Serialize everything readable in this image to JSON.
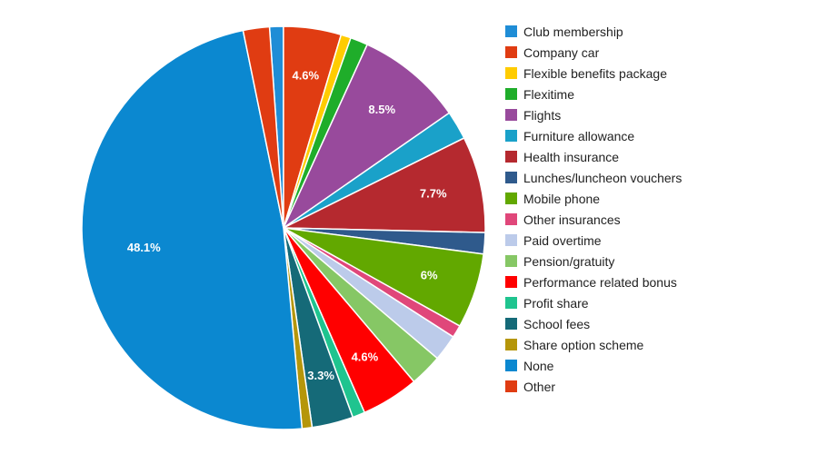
{
  "chart_data": {
    "type": "pie",
    "start_angle_deg": -4,
    "show_value_labels_above": 3,
    "slices": [
      {
        "name": "Club membership",
        "value": 1.1,
        "color": "#1f8dd6",
        "label": ""
      },
      {
        "name": "Company car",
        "value": 4.6,
        "color": "#e03c12",
        "label": "4.6%"
      },
      {
        "name": "Flexible benefits package",
        "value": 0.8,
        "color": "#ffcc00",
        "label": ""
      },
      {
        "name": "Flexitime",
        "value": 1.4,
        "color": "#1fad2a",
        "label": ""
      },
      {
        "name": "Flights",
        "value": 8.5,
        "color": "#984a9c",
        "label": "8.5%"
      },
      {
        "name": "Furniture allowance",
        "value": 2.3,
        "color": "#1aa1c9",
        "label": ""
      },
      {
        "name": "Health insurance",
        "value": 7.7,
        "color": "#b5292f",
        "label": "7.7%"
      },
      {
        "name": "Lunches/luncheon vouchers",
        "value": 1.7,
        "color": "#2f5a8c",
        "label": ""
      },
      {
        "name": "Mobile phone",
        "value": 6.0,
        "color": "#62a800",
        "label": "6%"
      },
      {
        "name": "Other insurances",
        "value": 1.0,
        "color": "#e0477a",
        "label": ""
      },
      {
        "name": "Paid overtime",
        "value": 2.1,
        "color": "#bccbea",
        "label": ""
      },
      {
        "name": "Pension/gratuity",
        "value": 2.6,
        "color": "#86c765",
        "label": ""
      },
      {
        "name": "Performance related bonus",
        "value": 4.6,
        "color": "#ff0000",
        "label": "4.6%"
      },
      {
        "name": "Profit share",
        "value": 1.0,
        "color": "#1fc48f",
        "label": ""
      },
      {
        "name": "School fees",
        "value": 3.3,
        "color": "#156a78",
        "label": "3.3%"
      },
      {
        "name": "Share option scheme",
        "value": 0.8,
        "color": "#b5960a",
        "label": ""
      },
      {
        "name": "None",
        "value": 48.1,
        "color": "#0b88d0",
        "label": "48.1%"
      },
      {
        "name": "Other",
        "value": 2.1,
        "color": "#e03c12",
        "label": ""
      }
    ]
  }
}
